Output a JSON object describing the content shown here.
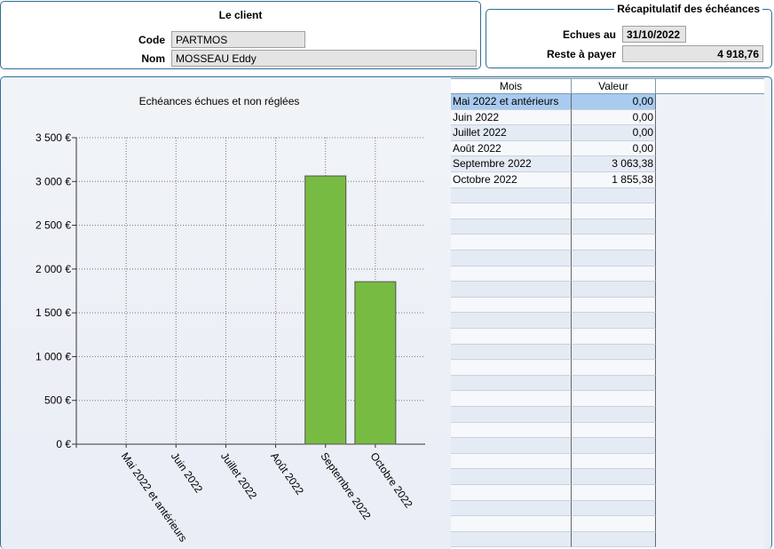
{
  "client": {
    "title": "Le client",
    "code_label": "Code",
    "code_value": "PARTMOS",
    "nom_label": "Nom",
    "nom_value": "MOSSEAU Eddy"
  },
  "recap": {
    "title": "Récapitulatif des échéances",
    "echues_label": "Echues au",
    "echues_value": "31/10/2022",
    "reste_label": "Reste à payer",
    "reste_value": "4 918,76"
  },
  "table": {
    "col_mois": "Mois",
    "col_valeur": "Valeur",
    "rows": [
      {
        "mois": "Mai 2022 et antérieurs",
        "valeur": "0,00"
      },
      {
        "mois": "Juin 2022",
        "valeur": "0,00"
      },
      {
        "mois": "Juillet 2022",
        "valeur": "0,00"
      },
      {
        "mois": "Août 2022",
        "valeur": "0,00"
      },
      {
        "mois": "Septembre 2022",
        "valeur": "3 063,38"
      },
      {
        "mois": "Octobre 2022",
        "valeur": "1 855,38"
      }
    ]
  },
  "chart_data": {
    "type": "bar",
    "title": "Echéances échues et non réglées",
    "categories": [
      "Mai 2022 et antérieurs",
      "Juin 2022",
      "Juillet 2022",
      "Août 2022",
      "Septembre 2022",
      "Octobre 2022"
    ],
    "values": [
      0,
      0,
      0,
      0,
      3063.38,
      1855.38
    ],
    "ylim": [
      0,
      3500
    ],
    "yticks": [
      "0 €",
      "500 €",
      "1 000 €",
      "1 500 €",
      "2 000 €",
      "2 500 €",
      "3 000 €",
      "3 500 €"
    ],
    "grid": true,
    "bar_color": "#78bb43"
  }
}
